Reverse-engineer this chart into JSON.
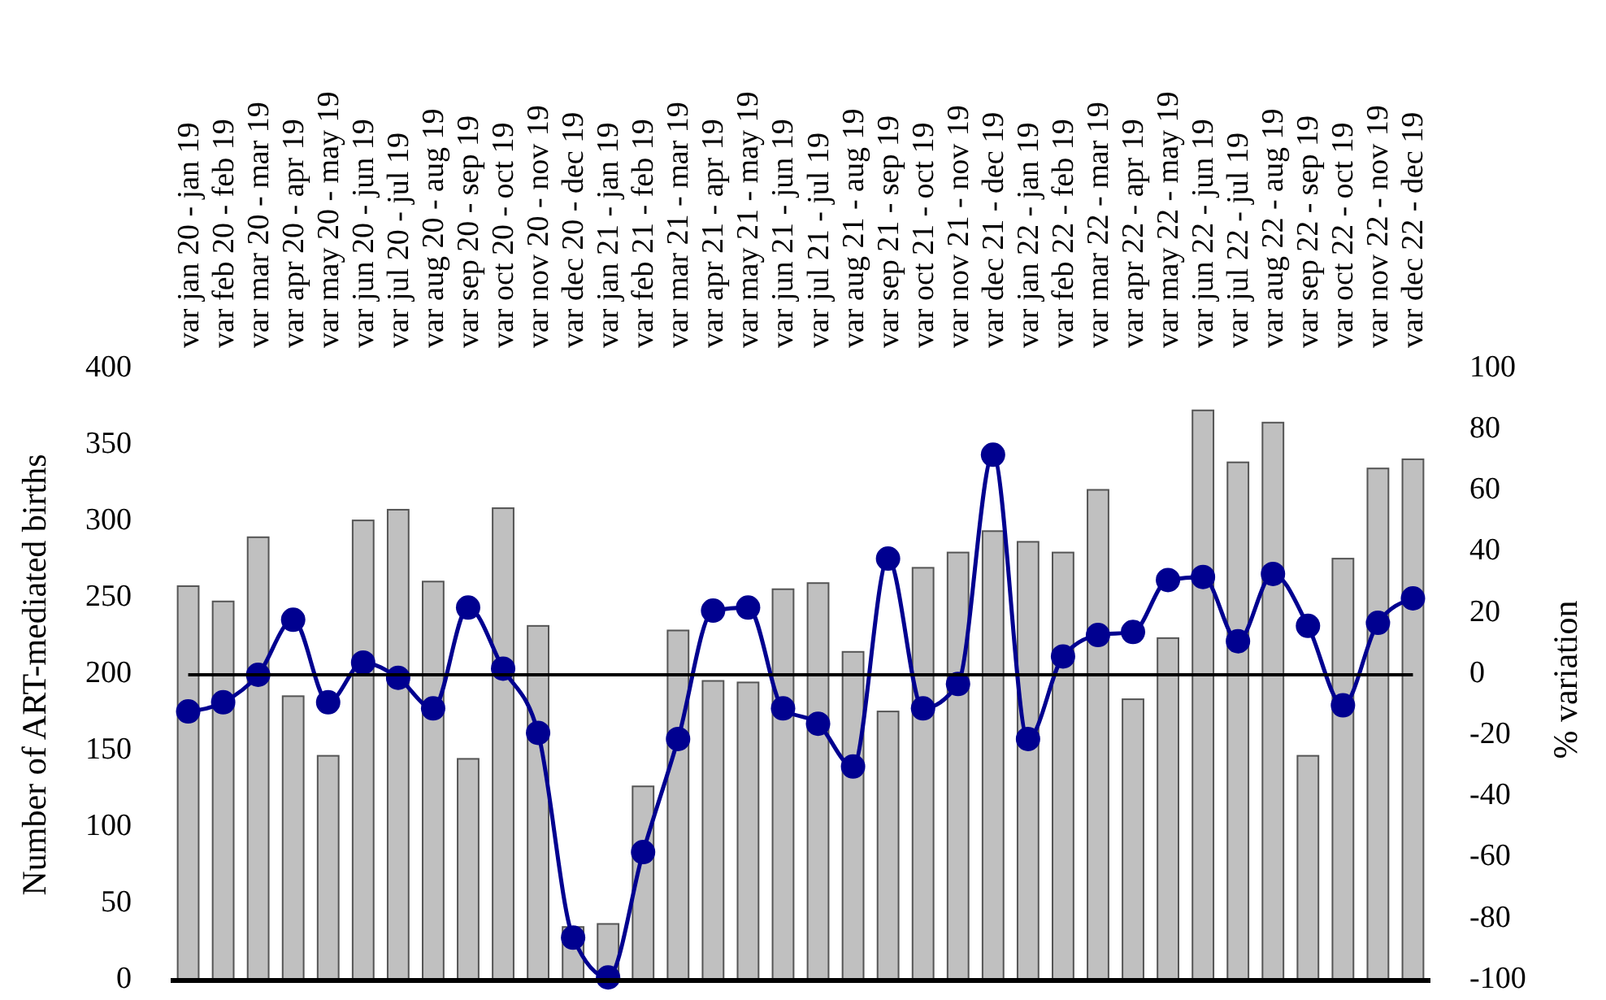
{
  "chart_data": {
    "type": "bar",
    "ylabel": "Number of ART-mediated births",
    "y2label": "% variation",
    "categories": [
      "var jan 20 - jan 19",
      "var feb 20 - feb 19",
      "var mar 20 - mar 19",
      "var apr 20 - apr 19",
      "var may 20 - may 19",
      "var jun 20 - jun 19",
      "var jul 20 - jul 19",
      "var aug 20 - aug 19",
      "var sep 20 - sep 19",
      "var oct 20 - oct 19",
      "var nov 20 - nov 19",
      "var dec 20 - dec 19",
      "var jan 21 - jan 19",
      "var feb 21 - feb 19",
      "var mar 21 - mar 19",
      "var apr 21 - apr 19",
      "var may 21 - may 19",
      "var jun 21 - jun 19",
      "var jul 21 - jul 19",
      "var aug 21 - aug 19",
      "var sep 21 - sep 19",
      "var oct 21 - oct 19",
      "var nov 21 - nov 19",
      "var dec 21 - dec 19",
      "var jan 22 - jan 19",
      "var feb 22 - feb 19",
      "var mar 22 - mar 19",
      "var apr 22 - apr 19",
      "var may 22 - may 19",
      "var jun 22 - jun 19",
      "var jul 22 - jul 19",
      "var aug 22 - aug 19",
      "var sep 22 - sep 19",
      "var oct 22 - oct 19",
      "var nov 22 - nov 19",
      "var dec 22 - dec 19"
    ],
    "series": [
      {
        "color": "#c0c0c0",
        "values": [
          258,
          248,
          290,
          186,
          147,
          301,
          308,
          261,
          145,
          309,
          232,
          35,
          37,
          127,
          229,
          196,
          195,
          256,
          260,
          215,
          176,
          270,
          280,
          294,
          287,
          280,
          321,
          184,
          224,
          373,
          339,
          365,
          147,
          276,
          335,
          341
        ]
      },
      {
        "type": "line",
        "axis": "y2",
        "color": "#000090",
        "marker": "circle",
        "values": [
          -12,
          -9,
          0,
          18,
          -9,
          4,
          -1,
          -11,
          22,
          2,
          -19,
          -86,
          -99,
          -58,
          -21,
          21,
          22,
          -11,
          -16,
          -30,
          38,
          -11,
          -3,
          72,
          -21,
          6,
          13,
          14,
          31,
          32,
          11,
          33,
          16,
          -10,
          17,
          25
        ]
      }
    ],
    "ylim": [
      0,
      400
    ],
    "yticks": [
      0,
      50,
      100,
      150,
      200,
      250,
      300,
      350,
      400
    ],
    "y2lim": [
      -100,
      100
    ],
    "y2ticks": [
      -100,
      -80,
      -60,
      -40,
      -20,
      0,
      20,
      40,
      60,
      80,
      100
    ],
    "ref_lines": [
      {
        "axis": "y2",
        "value": 0,
        "color": "#000000"
      }
    ],
    "grid": false
  }
}
